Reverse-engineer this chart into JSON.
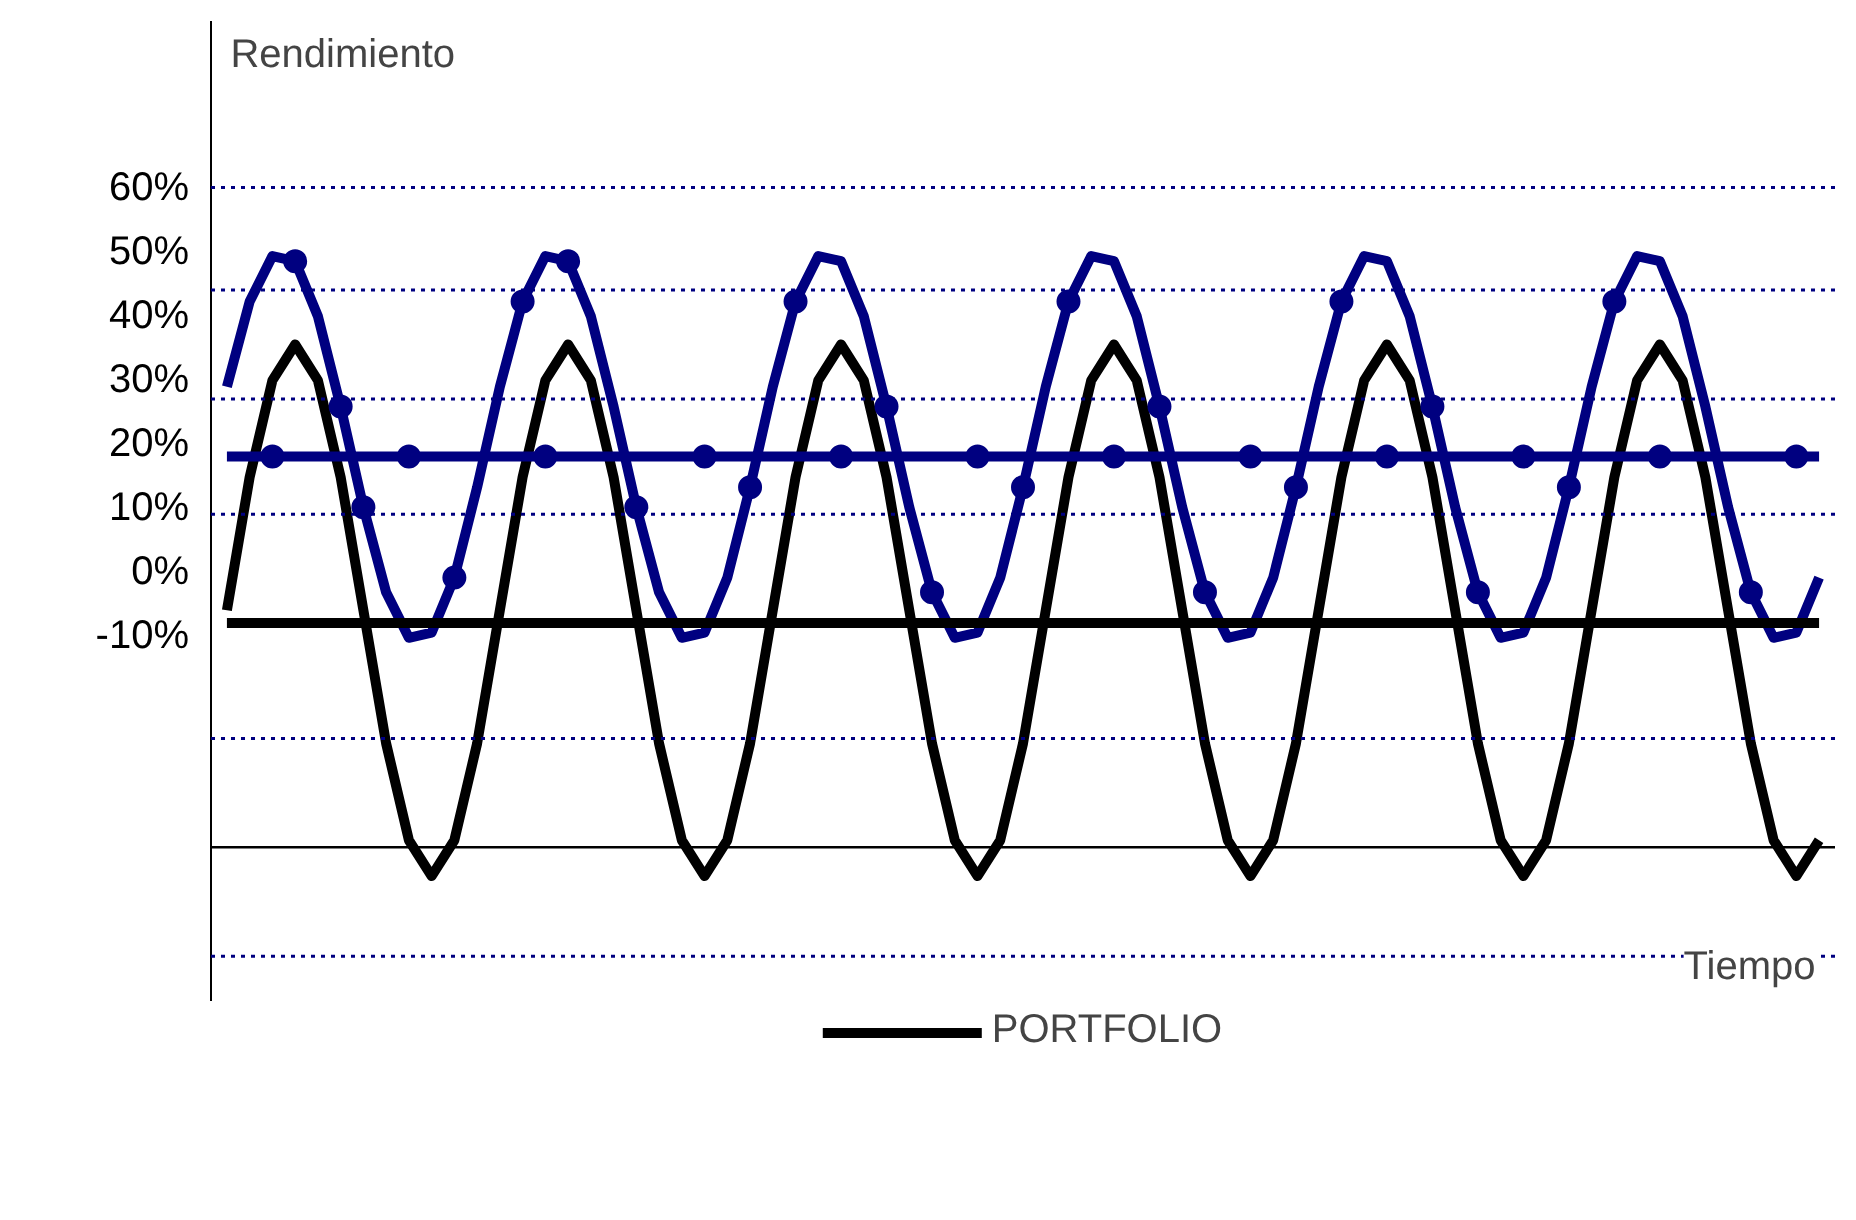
{
  "chart_data": {
    "type": "line",
    "xlabel": "Tiempo",
    "ylabel": "Rendimiento",
    "categories": [
      null,
      null,
      null,
      null,
      null,
      null,
      null,
      null,
      null,
      null,
      null,
      null,
      null,
      null,
      null,
      null,
      null,
      null,
      null,
      null,
      null,
      null,
      null,
      null,
      null,
      null,
      null,
      null,
      null,
      null,
      null,
      null,
      null,
      null,
      null,
      null,
      null,
      null,
      null,
      null,
      null,
      null,
      null,
      null,
      null,
      null,
      null,
      null,
      null,
      null,
      null,
      null,
      null,
      null,
      null,
      null,
      null,
      null,
      null,
      null,
      null,
      null,
      null,
      null,
      null,
      null,
      null,
      null,
      null,
      null,
      null
    ],
    "ylim": [
      -67,
      86
    ],
    "yticks": [
      {
        "value": 60,
        "label": "60%"
      },
      {
        "value": 50,
        "label": "50%"
      },
      {
        "value": 40,
        "label": "40%"
      },
      {
        "value": 30,
        "label": "30%"
      },
      {
        "value": 20,
        "label": "20%"
      },
      {
        "value": 10,
        "label": "10%"
      },
      {
        "value": 0,
        "label": "0%"
      },
      {
        "value": -10,
        "label": "-10%"
      }
    ],
    "tick_labels": "y",
    "legend": "bottom",
    "series": [
      {
        "name": "PORTFOLIO",
        "color": "#000000",
        "values": [
          -6,
          14.8,
          29.9,
          35.5,
          29.9,
          14.8,
          -6,
          -26.8,
          -41.9,
          -47.5,
          -41.9,
          -26.8,
          -6,
          14.8,
          29.9,
          35.5,
          29.9,
          14.8,
          -6,
          -26.8,
          -41.9,
          -47.5,
          -41.9,
          -26.8,
          -6,
          14.8,
          29.9,
          35.5,
          29.9,
          14.8,
          -6,
          -26.8,
          -41.9,
          -47.5,
          -41.9,
          -26.8,
          -6,
          14.8,
          29.9,
          35.5,
          29.9,
          14.8,
          -6,
          -26.8,
          -41.9,
          -47.5,
          -41.9,
          -26.8,
          -6,
          14.8,
          29.9,
          35.5,
          29.9,
          14.8,
          -6,
          -26.8,
          -41.9,
          -47.5,
          -41.9,
          -26.8,
          -6,
          14.8,
          29.9,
          35.5,
          29.9,
          14.8,
          -6,
          -26.8,
          -41.9,
          -47.5,
          -41.9
        ]
      },
      {
        "color": "#000080",
        "values": [
          28.9,
          42.2,
          49.3,
          48.5,
          39.9,
          25.8,
          10.1,
          -3.2,
          -10.3,
          -9.5,
          -0.9,
          13.2,
          28.9,
          42.2,
          49.3,
          48.5,
          39.9,
          25.8,
          10.1,
          -3.2,
          -10.3,
          -9.5,
          -0.9,
          13.2,
          28.9,
          42.2,
          49.3,
          48.5,
          39.9,
          25.8,
          10.1,
          -3.2,
          -10.3,
          -9.5,
          -0.9,
          13.2,
          28.9,
          42.2,
          49.3,
          48.5,
          39.9,
          25.8,
          10.1,
          -3.2,
          -10.3,
          -9.5,
          -0.9,
          13.2,
          28.9,
          42.2,
          49.3,
          48.5,
          39.9,
          25.8,
          10.1,
          -3.2,
          -10.3,
          -9.5,
          -0.9,
          13.2,
          28.9,
          42.2,
          49.3,
          48.5,
          39.9,
          25.8,
          10.1,
          -3.2,
          -10.3,
          -9.5,
          -0.9
        ]
      },
      {
        "type": "scatter",
        "color": "#000080",
        "marker": "circle",
        "values": [
          null,
          null,
          null,
          48.5,
          null,
          25.8,
          10.1,
          null,
          null,
          null,
          -0.9,
          null,
          null,
          42.2,
          null,
          48.5,
          null,
          null,
          10.1,
          null,
          null,
          null,
          null,
          13.2,
          null,
          42.2,
          null,
          null,
          null,
          25.8,
          null,
          -3.2,
          null,
          null,
          null,
          13.2,
          null,
          42.2,
          null,
          null,
          null,
          25.8,
          null,
          -3.2,
          null,
          null,
          null,
          13.2,
          null,
          42.2,
          null,
          null,
          null,
          25.8,
          null,
          -3.2,
          null,
          null,
          null,
          13.2,
          null,
          42.2,
          null,
          null,
          null,
          null,
          null,
          -3.2,
          null,
          null,
          null
        ]
      },
      {
        "color": "#000000",
        "values": [
          -8,
          -8,
          -8,
          -8,
          -8,
          -8,
          -8,
          -8,
          -8,
          -8,
          -8,
          -8,
          -8,
          -8,
          -8,
          -8,
          -8,
          -8,
          -8,
          -8,
          -8,
          -8,
          -8,
          -8,
          -8,
          -8,
          -8,
          -8,
          -8,
          -8,
          -8,
          -8,
          -8,
          -8,
          -8,
          -8,
          -8,
          -8,
          -8,
          -8,
          -8,
          -8,
          -8,
          -8,
          -8,
          -8,
          -8,
          -8,
          -8,
          -8,
          -8,
          -8,
          -8,
          -8,
          -8,
          -8,
          -8,
          -8,
          -8,
          -8,
          -8,
          -8,
          -8,
          -8,
          -8,
          -8,
          -8,
          -8,
          -8,
          -8,
          -8
        ]
      },
      {
        "color": "#000080",
        "values": [
          18,
          18,
          18,
          18,
          18,
          18,
          18,
          18,
          18,
          18,
          18,
          18,
          18,
          18,
          18,
          18,
          18,
          18,
          18,
          18,
          18,
          18,
          18,
          18,
          18,
          18,
          18,
          18,
          18,
          18,
          18,
          18,
          18,
          18,
          18,
          18,
          18,
          18,
          18,
          18,
          18,
          18,
          18,
          18,
          18,
          18,
          18,
          18,
          18,
          18,
          18,
          18,
          18,
          18,
          18,
          18,
          18,
          18,
          18,
          18,
          18,
          18,
          18,
          18,
          18,
          18,
          18,
          18,
          18,
          18,
          18
        ]
      },
      {
        "type": "scatter",
        "color": "#000080",
        "marker": "circle",
        "values": [
          null,
          null,
          18,
          null,
          null,
          null,
          null,
          null,
          18,
          null,
          null,
          null,
          null,
          null,
          18,
          null,
          null,
          null,
          null,
          null,
          null,
          18,
          null,
          null,
          null,
          null,
          null,
          18,
          null,
          null,
          null,
          null,
          null,
          18,
          null,
          null,
          null,
          null,
          null,
          18,
          null,
          null,
          null,
          null,
          null,
          18,
          null,
          null,
          null,
          null,
          null,
          18,
          null,
          null,
          null,
          null,
          null,
          18,
          null,
          null,
          null,
          null,
          null,
          18,
          null,
          null,
          null,
          null,
          null,
          18,
          null
        ]
      }
    ],
    "ref_lines": [
      {
        "axis": "y",
        "value": 60,
        "color": "#000080",
        "line_style": "dotted"
      },
      {
        "axis": "y",
        "value": 44,
        "color": "#000080",
        "line_style": "dotted"
      },
      {
        "axis": "y",
        "value": 27,
        "color": "#000080",
        "line_style": "dotted"
      },
      {
        "axis": "y",
        "value": 9,
        "color": "#000080",
        "line_style": "dotted"
      },
      {
        "axis": "y",
        "value": -26,
        "color": "#000080",
        "line_style": "dotted"
      },
      {
        "axis": "y",
        "value": -60,
        "color": "#000080",
        "line_style": "dotted"
      },
      {
        "axis": "y",
        "value": -43,
        "color": "#000000",
        "line_style": "solid"
      }
    ]
  }
}
